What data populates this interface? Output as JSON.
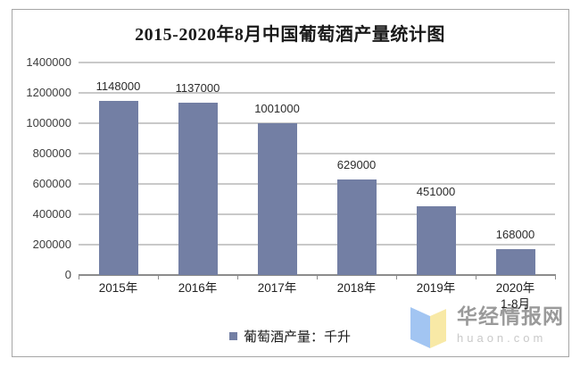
{
  "title": "2015-2020年8月中国葡萄酒产量统计图",
  "chart_data": {
    "type": "bar",
    "title": "2015-2020年8月中国葡萄酒产量统计图",
    "categories": [
      "2015年",
      "2016年",
      "2017年",
      "2018年",
      "2019年",
      "2020年\n1-8月"
    ],
    "values": [
      1148000,
      1137000,
      1001000,
      629000,
      451000,
      168000
    ],
    "data_labels": [
      "1148000",
      "1137000",
      "1001000",
      "629000",
      "451000",
      "168000"
    ],
    "xlabel": "",
    "ylabel": "",
    "ylim": [
      0,
      1400000
    ],
    "yticks": [
      0,
      200000,
      400000,
      600000,
      800000,
      1000000,
      1200000,
      1400000
    ],
    "grid": true,
    "legend": {
      "label": "葡萄酒产量：千升",
      "position": "bottom"
    },
    "colors": {
      "bar": "#737FA4",
      "gridline": "#C9C9C9",
      "axis": "#8C8C8C",
      "tick_label": "#3F3F3F"
    }
  },
  "watermark": {
    "name": "华经情报网",
    "domain": "huaon.com",
    "colors": {
      "logo_blue": "#A2C5F2",
      "logo_yellow": "#F8E9A6",
      "name_text": "#9A9A9A",
      "domain_text": "#C9C9C9"
    }
  },
  "frame": {
    "border_color": "#A6A6A6",
    "background": "#FFFFFF"
  }
}
